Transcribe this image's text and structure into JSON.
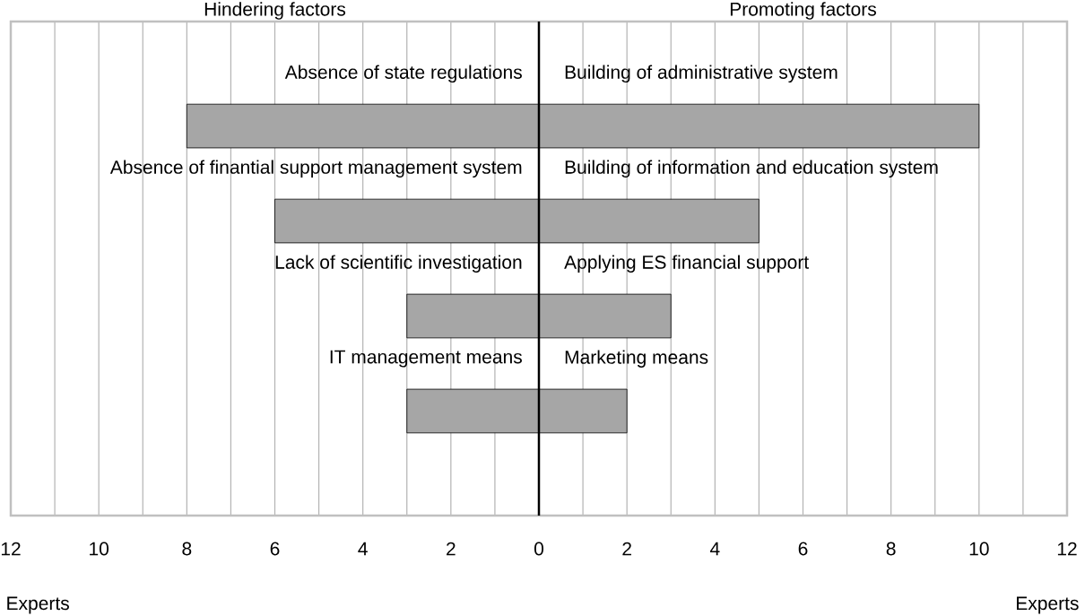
{
  "chart_data": {
    "type": "bar",
    "orientation": "horizontal",
    "stacked": true,
    "categories": [
      null,
      null,
      null,
      null
    ],
    "series": [
      {
        "color": "#a6a6a6",
        "values": [
          -8,
          -6,
          -3,
          -3
        ]
      },
      {
        "color": "#a6a6a6",
        "values": [
          10,
          5,
          3,
          2
        ]
      }
    ],
    "annotations": [
      "Hindering factors",
      "Promoting factors",
      "Absence of state regulations",
      "Building of administrative system",
      "Absence of finantial support management system",
      "Building of information and education system",
      "Lack of scientific investigation",
      "Applying ES financial support",
      "IT management means",
      "Marketing means"
    ],
    "xlabel": "Experts",
    "xlim": [
      -12,
      12
    ],
    "xticks": [
      {
        "value": -12,
        "label": "12"
      },
      {
        "value": -11,
        "label": null
      },
      {
        "value": -10,
        "label": "10"
      },
      {
        "value": -9,
        "label": null
      },
      {
        "value": -8,
        "label": "8"
      },
      {
        "value": -7,
        "label": null
      },
      {
        "value": -6,
        "label": "6"
      },
      {
        "value": -5,
        "label": null
      },
      {
        "value": -4,
        "label": "4"
      },
      {
        "value": -3,
        "label": null
      },
      {
        "value": -2,
        "label": "2"
      },
      {
        "value": -1,
        "label": null
      },
      0,
      {
        "value": 1,
        "label": null
      },
      2,
      {
        "value": 3,
        "label": null
      },
      4,
      {
        "value": 5,
        "label": null
      },
      6,
      {
        "value": 7,
        "label": null
      },
      8,
      {
        "value": 9,
        "label": null
      },
      10,
      {
        "value": 11,
        "label": null
      },
      12
    ],
    "ref_lines": [
      {
        "axis": "x",
        "value": 0,
        "color": "#000000"
      }
    ],
    "grid": "x"
  }
}
